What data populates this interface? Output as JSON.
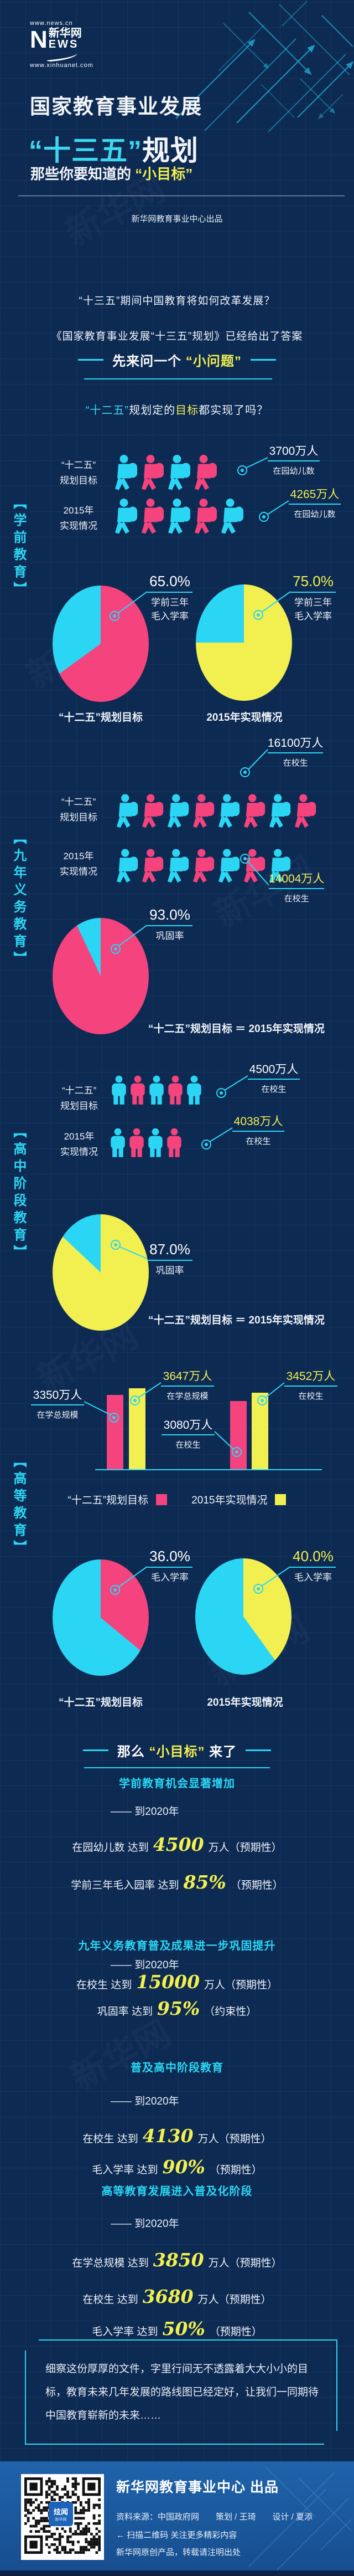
{
  "colors": {
    "bg": "#0d2a52",
    "cyan": "#2bd6f4",
    "cyan2": "#3ed7f0",
    "pink": "#f4437d",
    "yellow": "#f2ef51",
    "footerbg": "#1d5ea6"
  },
  "header": {
    "logo_url_top": "www.news.cn",
    "logo_n": "N",
    "logo_cn": "新华网",
    "logo_ews": "EWS",
    "logo_url_bottom": "www.xinhuanet.com",
    "title_line1": "国家教育事业发展",
    "title_line2_highlight": "“十三五”",
    "title_line2_rest": "规划",
    "subtitle_prefix": "那些你要知道的",
    "subtitle_highlight": "“小目标”",
    "credit": "新华网教育事业中心出品",
    "q1": "“十三五”期间中国教育将如何改革发展？",
    "q2": "《国家教育事业发展“十三五”规划》已经给出了答案"
  },
  "sh1": {
    "prefix": "先来问一个",
    "highlight": "“小问题”"
  },
  "question": {
    "p1": "“十二五”",
    "p2": "规划定的",
    "p3": "目标",
    "p4": "都实现了吗？"
  },
  "preschool": {
    "vlabel": "【学前教育】",
    "rows": [
      {
        "label1": "“十二五”",
        "label2": "规划目标",
        "value": "3700万人",
        "desc": "在园幼儿数",
        "count": 4,
        "highlight": false
      },
      {
        "label1": "2015年",
        "label2": "实现情况",
        "value": "4265万人",
        "desc": "在园幼儿数",
        "count": 5,
        "highlight": true
      }
    ],
    "pies": [
      {
        "pct": "65.0%",
        "desc1": "学前三年",
        "desc2": "毛入学率",
        "value": 65,
        "color": "pink",
        "caption": "“十二五”规划目标",
        "highlight": false
      },
      {
        "pct": "75.0%",
        "desc1": "学前三年",
        "desc2": "毛入学率",
        "value": 75,
        "color": "yellow",
        "caption": "2015年实现情况",
        "highlight": true
      }
    ]
  },
  "nineyear": {
    "vlabel": "【九年义务教育】",
    "rows": [
      {
        "label1": "“十二五”",
        "label2": "规划目标",
        "value": "16100万人",
        "desc": "在校生",
        "count": 8,
        "highlight": false
      },
      {
        "label1": "2015年",
        "label2": "实现情况",
        "value": "14004万人",
        "desc": "在校生",
        "count": 7,
        "highlight": true
      }
    ],
    "pie": {
      "pct": "93.0%",
      "desc1": "巩固率",
      "value": 93,
      "color": "pink"
    },
    "note": "“十二五”规划目标 ＝ 2015年实现情况"
  },
  "highschool": {
    "vlabel": "【高中阶段教育】",
    "rows": [
      {
        "label1": "“十二五”",
        "label2": "规划目标",
        "value": "4500万人",
        "desc": "在校生",
        "count": 5,
        "highlight": false
      },
      {
        "label1": "2015年",
        "label2": "实现情况",
        "value": "4038万人",
        "desc": "在校生",
        "count": 4,
        "highlight": true
      }
    ],
    "pie": {
      "pct": "87.0%",
      "desc1": "巩固率",
      "value": 87,
      "color": "yellow"
    },
    "note": "“十二五”规划目标 ＝ 2015年实现情况"
  },
  "higher": {
    "vlabel": "【高等教育】",
    "callouts": [
      {
        "value": "3350万人",
        "desc": "在学总规模",
        "highlight": false
      },
      {
        "value": "3647万人",
        "desc": "在学总规模",
        "highlight": true
      },
      {
        "value": "3080万人",
        "desc": "在校生",
        "highlight": false
      },
      {
        "value": "3452万人",
        "desc": "在校生",
        "highlight": true
      }
    ],
    "legend": [
      {
        "label": "“十二五”规划目标",
        "color": "pink"
      },
      {
        "label": "2015年实现情况",
        "color": "yellow"
      }
    ],
    "pies": [
      {
        "pct": "36.0%",
        "desc1": "毛入学率",
        "value": 36,
        "color": "pink",
        "caption": "“十二五”规划目标",
        "highlight": false
      },
      {
        "pct": "40.0%",
        "desc1": "毛入学率",
        "value": 40,
        "color": "yellow",
        "caption": "2015年实现情况",
        "highlight": true
      }
    ]
  },
  "sh2": {
    "p1": "那么",
    "p2": "“小目标”",
    "p3": "来了"
  },
  "goals": [
    {
      "title": "学前教育机会显著增加",
      "deadline": "—— 到2020年",
      "items": [
        {
          "pre": "在园幼儿数 达到",
          "num": "4500",
          "post": "万人（预期性）"
        },
        {
          "pre": "学前三年毛入园率 达到",
          "num": "85%",
          "post": "（预期性）"
        }
      ]
    },
    {
      "title": "九年义务教育普及成果进一步巩固提升",
      "deadline": "—— 到2020年",
      "items": [
        {
          "pre": "在校生 达到",
          "num": "15000",
          "post": "万人（预期性）"
        },
        {
          "pre": "巩固率 达到",
          "num": "95%",
          "post": "（约束性）"
        }
      ]
    },
    {
      "title": "普及高中阶段教育",
      "deadline": "—— 到2020年",
      "items": [
        {
          "pre": "在校生 达到",
          "num": "4130",
          "post": "万人（预期性）"
        },
        {
          "pre": "毛入学率 达到",
          "num": "90%",
          "post": "（预期性）"
        }
      ]
    },
    {
      "title": "高等教育发展进入普及化阶段",
      "deadline": "—— 到2020年",
      "items": [
        {
          "pre": "在学总规模 达到",
          "num": "3850",
          "post": "万人（预期性）"
        },
        {
          "pre": "在校生 达到",
          "num": "3680",
          "post": "万人（预期性）"
        },
        {
          "pre": "毛入学率 达到",
          "num": "50%",
          "post": "（预期性）"
        }
      ]
    }
  ],
  "closing": {
    "text": "细察这份厚厚的文件，字里行间无不透露着大大小小的目标，教育未来几年发展的路线图已经定好，让我们一同期待中国教育崭新的未来……"
  },
  "footer": {
    "title": "新华网教育事业中心 出品",
    "credits": "资料来源：中国政府网　　策划 / 王琦　　设计 / 夏添",
    "scan_arrow": "←",
    "scan": "扫描二维码 关注更多精彩内容",
    "copyright": "新华网原创产品，转载请注明出处",
    "qr_center_l1": "炫闻",
    "qr_center_l2": "新华网"
  },
  "chart_data": [
    {
      "type": "pictogram",
      "section": "学前教育",
      "measure": "在园幼儿数",
      "unit": "万人",
      "categories": [
        "“十二五”规划目标",
        "2015年实现情况"
      ],
      "values": [
        3700,
        4265
      ]
    },
    {
      "type": "pie",
      "section": "学前教育",
      "title": "学前三年毛入学率",
      "unit": "%",
      "series": [
        {
          "name": "“十二五”规划目标",
          "value": 65.0
        },
        {
          "name": "2015年实现情况",
          "value": 75.0
        }
      ]
    },
    {
      "type": "pictogram",
      "section": "九年义务教育",
      "measure": "在校生",
      "unit": "万人",
      "categories": [
        "“十二五”规划目标",
        "2015年实现情况"
      ],
      "values": [
        16100,
        14004
      ]
    },
    {
      "type": "pie",
      "section": "九年义务教育",
      "title": "巩固率",
      "unit": "%",
      "series": [
        {
          "name": "“十二五”规划目标 ＝ 2015年实现情况",
          "value": 93.0
        }
      ]
    },
    {
      "type": "pictogram",
      "section": "高中阶段教育",
      "measure": "在校生",
      "unit": "万人",
      "categories": [
        "“十二五”规划目标",
        "2015年实现情况"
      ],
      "values": [
        4500,
        4038
      ]
    },
    {
      "type": "pie",
      "section": "高中阶段教育",
      "title": "巩固率",
      "unit": "%",
      "series": [
        {
          "name": "“十二五”规划目标 ＝ 2015年实现情况",
          "value": 87.0
        }
      ]
    },
    {
      "type": "bar",
      "section": "高等教育",
      "unit": "万人",
      "categories": [
        "在学总规模",
        "在校生"
      ],
      "series": [
        {
          "name": "“十二五”规划目标",
          "values": [
            3350,
            3080
          ]
        },
        {
          "name": "2015年实现情况",
          "values": [
            3647,
            3452
          ]
        }
      ],
      "legend_position": "bottom",
      "ylim": [
        0,
        4000
      ]
    },
    {
      "type": "pie",
      "section": "高等教育",
      "title": "毛入学率",
      "unit": "%",
      "series": [
        {
          "name": "“十二五”规划目标",
          "value": 36.0
        },
        {
          "name": "2015年实现情况",
          "value": 40.0
        }
      ]
    }
  ]
}
